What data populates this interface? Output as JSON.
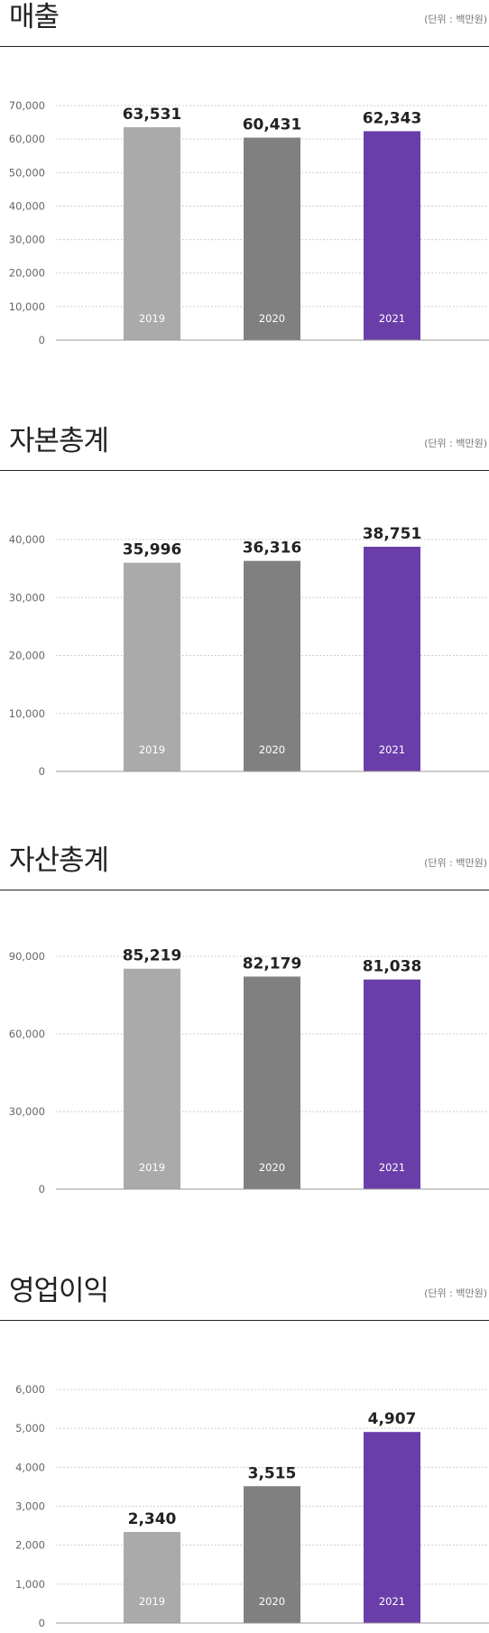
{
  "unit_text": "(단위 : 백만원)",
  "colors": {
    "2019": "#aaaaaa",
    "2020": "#808080",
    "2021": "#6a3ea9"
  },
  "chart_data": [
    {
      "type": "bar",
      "title": "매출",
      "unit": "(단위 : 백만원)",
      "categories": [
        "2019",
        "2020",
        "2021"
      ],
      "values": [
        63531,
        60431,
        62343
      ],
      "value_labels": [
        "63,531",
        "60,431",
        "62,343"
      ],
      "yticks": [
        0,
        10000,
        20000,
        30000,
        40000,
        50000,
        60000,
        70000
      ],
      "ytick_labels": [
        "0",
        "10,000",
        "20,000",
        "30,000",
        "40,000",
        "50,000",
        "60,000",
        "70,000"
      ],
      "ylim": [
        0,
        70000
      ],
      "grid": true
    },
    {
      "type": "bar",
      "title": "자본총계",
      "unit": "(단위 : 백만원)",
      "categories": [
        "2019",
        "2020",
        "2021"
      ],
      "values": [
        35996,
        36316,
        38751
      ],
      "value_labels": [
        "35,996",
        "36,316",
        "38,751"
      ],
      "yticks": [
        0,
        10000,
        20000,
        30000,
        40000
      ],
      "ytick_labels": [
        "0",
        "10,000",
        "20,000",
        "30,000",
        "40,000"
      ],
      "ylim": [
        0,
        40000
      ],
      "grid": true
    },
    {
      "type": "bar",
      "title": "자산총계",
      "unit": "(단위 : 백만원)",
      "categories": [
        "2019",
        "2020",
        "2021"
      ],
      "values": [
        85219,
        82179,
        81038
      ],
      "value_labels": [
        "85,219",
        "82,179",
        "81,038"
      ],
      "yticks": [
        0,
        30000,
        60000,
        90000
      ],
      "ytick_labels": [
        "0",
        "30,000",
        "60,000",
        "90,000"
      ],
      "ylim": [
        0,
        90000
      ],
      "grid": true
    },
    {
      "type": "bar",
      "title": "영업이익",
      "unit": "(단위 : 백만원)",
      "categories": [
        "2019",
        "2020",
        "2021"
      ],
      "values": [
        2340,
        3515,
        4907
      ],
      "value_labels": [
        "2,340",
        "3,515",
        "4,907"
      ],
      "yticks": [
        0,
        1000,
        2000,
        3000,
        4000,
        5000,
        6000
      ],
      "ytick_labels": [
        "0",
        "1,000",
        "2,000",
        "3,000",
        "4,000",
        "5,000",
        "6,000"
      ],
      "ylim": [
        0,
        6000
      ],
      "grid": true
    }
  ]
}
